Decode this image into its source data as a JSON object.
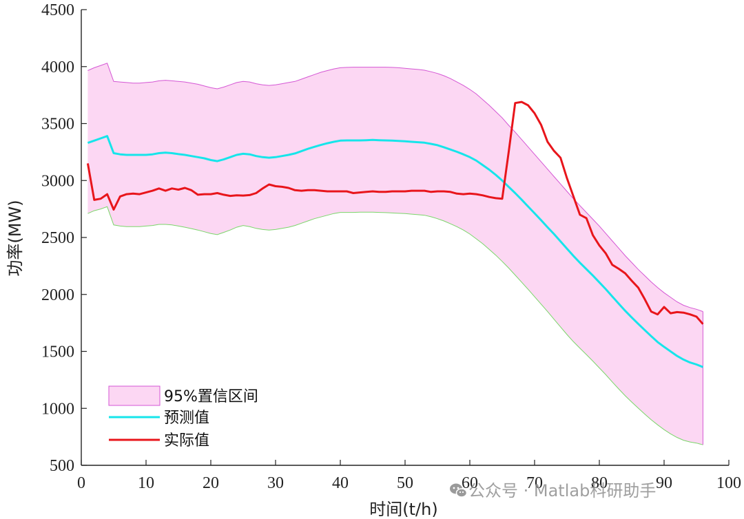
{
  "chart_data": {
    "type": "line",
    "xlabel": "时间(t/h)",
    "ylabel": "功率(MW)",
    "xlim": [
      0,
      100
    ],
    "ylim": [
      500,
      4500
    ],
    "xticks": [
      0,
      10,
      20,
      30,
      40,
      50,
      60,
      70,
      80,
      90,
      100
    ],
    "yticks": [
      500,
      1000,
      1500,
      2000,
      2500,
      3000,
      3500,
      4000,
      4500
    ],
    "grid": false,
    "legend_position": "bottom-left",
    "colors": {
      "band_fill": "#fcd7f3",
      "band_upper": "#d456d4",
      "band_lower": "#7ad66a",
      "predicted": "#16e5ea",
      "actual": "#e8151b"
    },
    "x": [
      1,
      2,
      3,
      4,
      5,
      6,
      7,
      8,
      9,
      10,
      11,
      12,
      13,
      14,
      15,
      16,
      17,
      18,
      19,
      20,
      21,
      22,
      23,
      24,
      25,
      26,
      27,
      28,
      29,
      30,
      31,
      32,
      33,
      34,
      35,
      36,
      37,
      38,
      39,
      40,
      41,
      42,
      43,
      44,
      45,
      46,
      47,
      48,
      49,
      50,
      51,
      52,
      53,
      54,
      55,
      56,
      57,
      58,
      59,
      60,
      61,
      62,
      63,
      64,
      65,
      66,
      67,
      68,
      69,
      70,
      71,
      72,
      73,
      74,
      75,
      76,
      77,
      78,
      79,
      80,
      81,
      82,
      83,
      84,
      85,
      86,
      87,
      88,
      89,
      90,
      91,
      92,
      93,
      94,
      95,
      96
    ],
    "series": [
      {
        "name": "预测值",
        "values": [
          3330,
          3350,
          3370,
          3390,
          3240,
          3230,
          3225,
          3225,
          3225,
          3225,
          3230,
          3240,
          3245,
          3240,
          3232,
          3225,
          3215,
          3205,
          3195,
          3180,
          3170,
          3185,
          3205,
          3225,
          3235,
          3230,
          3215,
          3205,
          3200,
          3205,
          3215,
          3225,
          3238,
          3258,
          3278,
          3296,
          3312,
          3327,
          3340,
          3350,
          3352,
          3352,
          3352,
          3354,
          3356,
          3354,
          3352,
          3350,
          3348,
          3345,
          3340,
          3336,
          3332,
          3322,
          3310,
          3292,
          3272,
          3252,
          3230,
          3205,
          3175,
          3135,
          3095,
          3050,
          3000,
          2945,
          2890,
          2832,
          2772,
          2712,
          2652,
          2590,
          2530,
          2466,
          2402,
          2338,
          2278,
          2222,
          2166,
          2106,
          2046,
          1982,
          1918,
          1856,
          1798,
          1742,
          1688,
          1634,
          1582,
          1540,
          1500,
          1460,
          1428,
          1403,
          1385,
          1362
        ]
      },
      {
        "name": "实际值",
        "values": [
          3150,
          2830,
          2840,
          2880,
          2745,
          2860,
          2880,
          2885,
          2880,
          2895,
          2910,
          2930,
          2910,
          2930,
          2920,
          2935,
          2915,
          2875,
          2880,
          2880,
          2890,
          2875,
          2865,
          2870,
          2868,
          2872,
          2890,
          2930,
          2965,
          2950,
          2945,
          2935,
          2915,
          2910,
          2915,
          2915,
          2910,
          2905,
          2905,
          2905,
          2905,
          2890,
          2895,
          2900,
          2905,
          2900,
          2900,
          2905,
          2905,
          2905,
          2910,
          2910,
          2910,
          2900,
          2905,
          2905,
          2900,
          2885,
          2880,
          2885,
          2880,
          2870,
          2855,
          2845,
          2840,
          3250,
          3680,
          3690,
          3660,
          3590,
          3490,
          3340,
          3260,
          3200,
          3020,
          2860,
          2700,
          2670,
          2520,
          2430,
          2360,
          2260,
          2225,
          2185,
          2120,
          2060,
          1960,
          1850,
          1825,
          1890,
          1835,
          1845,
          1840,
          1825,
          1805,
          1740
        ]
      },
      {
        "name": "95%置信区间",
        "upper": [
          3965,
          3990,
          4010,
          4030,
          3870,
          3865,
          3860,
          3855,
          3855,
          3860,
          3865,
          3875,
          3880,
          3875,
          3870,
          3865,
          3855,
          3845,
          3830,
          3815,
          3805,
          3820,
          3840,
          3860,
          3870,
          3865,
          3850,
          3840,
          3835,
          3840,
          3850,
          3860,
          3870,
          3890,
          3910,
          3930,
          3950,
          3965,
          3980,
          3990,
          3993,
          3995,
          3995,
          3995,
          3995,
          3995,
          3995,
          3993,
          3990,
          3985,
          3980,
          3975,
          3968,
          3955,
          3940,
          3920,
          3895,
          3865,
          3835,
          3800,
          3760,
          3710,
          3660,
          3605,
          3550,
          3485,
          3425,
          3360,
          3295,
          3230,
          3165,
          3100,
          3035,
          2970,
          2905,
          2840,
          2780,
          2720,
          2660,
          2600,
          2535,
          2470,
          2405,
          2340,
          2280,
          2220,
          2165,
          2110,
          2060,
          2015,
          1975,
          1935,
          1905,
          1885,
          1870,
          1850
        ],
        "lower": [
          2710,
          2735,
          2750,
          2770,
          2610,
          2600,
          2595,
          2595,
          2595,
          2600,
          2605,
          2615,
          2615,
          2610,
          2600,
          2590,
          2578,
          2565,
          2550,
          2535,
          2525,
          2545,
          2565,
          2590,
          2605,
          2595,
          2580,
          2570,
          2565,
          2570,
          2580,
          2590,
          2605,
          2625,
          2645,
          2665,
          2680,
          2695,
          2710,
          2720,
          2720,
          2720,
          2722,
          2722,
          2722,
          2720,
          2718,
          2715,
          2712,
          2710,
          2705,
          2700,
          2695,
          2682,
          2665,
          2645,
          2620,
          2595,
          2565,
          2530,
          2488,
          2445,
          2395,
          2345,
          2290,
          2232,
          2170,
          2108,
          2045,
          1980,
          1915,
          1850,
          1782,
          1715,
          1648,
          1585,
          1528,
          1472,
          1415,
          1355,
          1295,
          1232,
          1170,
          1110,
          1055,
          1002,
          950,
          900,
          855,
          813,
          776,
          745,
          720,
          705,
          695,
          680
        ]
      }
    ],
    "legend": [
      "95%置信区间",
      "预测值",
      "实际值"
    ]
  },
  "watermark": {
    "icon": "wechat-icon",
    "text": "公众号 · Matlab科研助手"
  }
}
